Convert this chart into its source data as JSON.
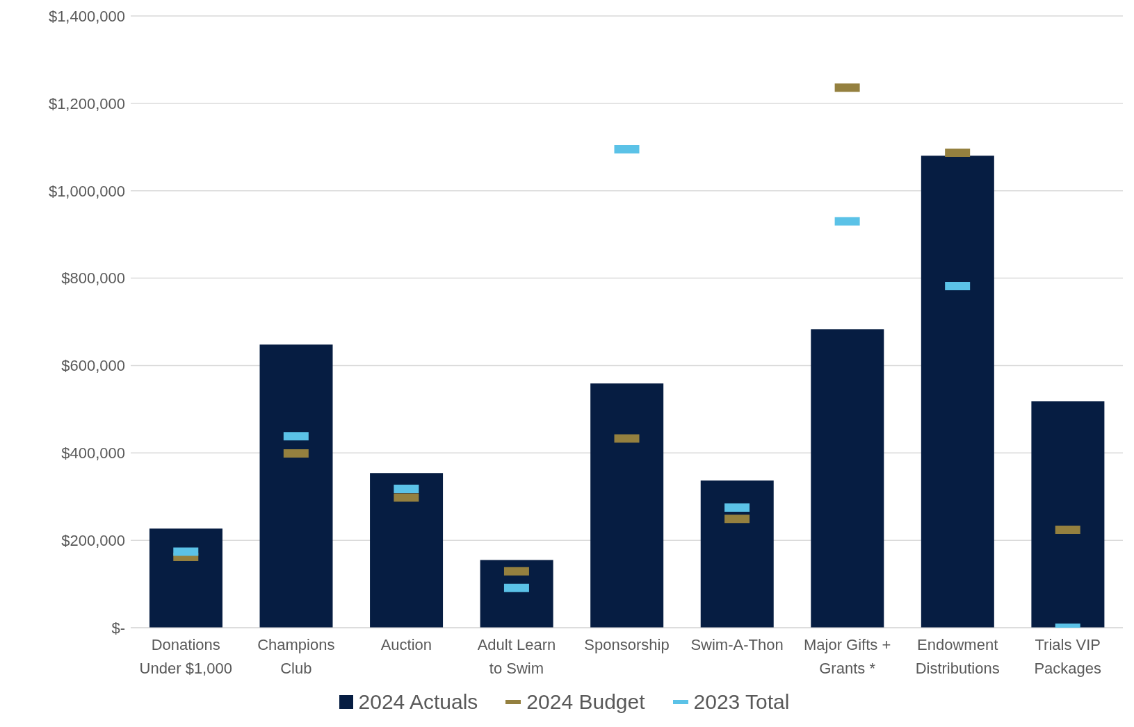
{
  "chart_data": {
    "type": "bar",
    "categories": [
      "Donations Under $1,000",
      "Champions Club",
      "Auction",
      "Adult Learn to Swim",
      "Sponsorship",
      "Swim-A-Thon",
      "Major Gifts + Grants *",
      "Endowment Distributions",
      "Trials VIP Packages"
    ],
    "series": [
      {
        "name": "2024 Actuals",
        "color": "#061d42",
        "values": [
          227000,
          648000,
          354000,
          155000,
          559000,
          337000,
          683000,
          1080000,
          518000
        ]
      },
      {
        "name": "2024 Budget",
        "type": "scatter",
        "color": "#94803f",
        "values": [
          162000,
          399000,
          298000,
          129000,
          433000,
          249000,
          1236000,
          1087000,
          224000
        ]
      },
      {
        "name": "2023 Total",
        "type": "scatter",
        "color": "#5bc2e7",
        "values": [
          174000,
          438000,
          318000,
          91000,
          1095000,
          275000,
          930000,
          782000,
          0
        ]
      }
    ],
    "ylim": [
      0,
      1400000
    ],
    "yticks": [
      {
        "value": 0,
        "label": "$-"
      },
      {
        "value": 200000,
        "label": "$200,000"
      },
      {
        "value": 400000,
        "label": "$400,000"
      },
      {
        "value": 600000,
        "label": "$600,000"
      },
      {
        "value": 800000,
        "label": "$800,000"
      },
      {
        "value": 1000000,
        "label": "$1,000,000"
      },
      {
        "value": 1200000,
        "label": "$1,200,000"
      },
      {
        "value": 1400000,
        "label": "$1,400,000"
      }
    ],
    "grid": "y",
    "legend": "bottom"
  }
}
